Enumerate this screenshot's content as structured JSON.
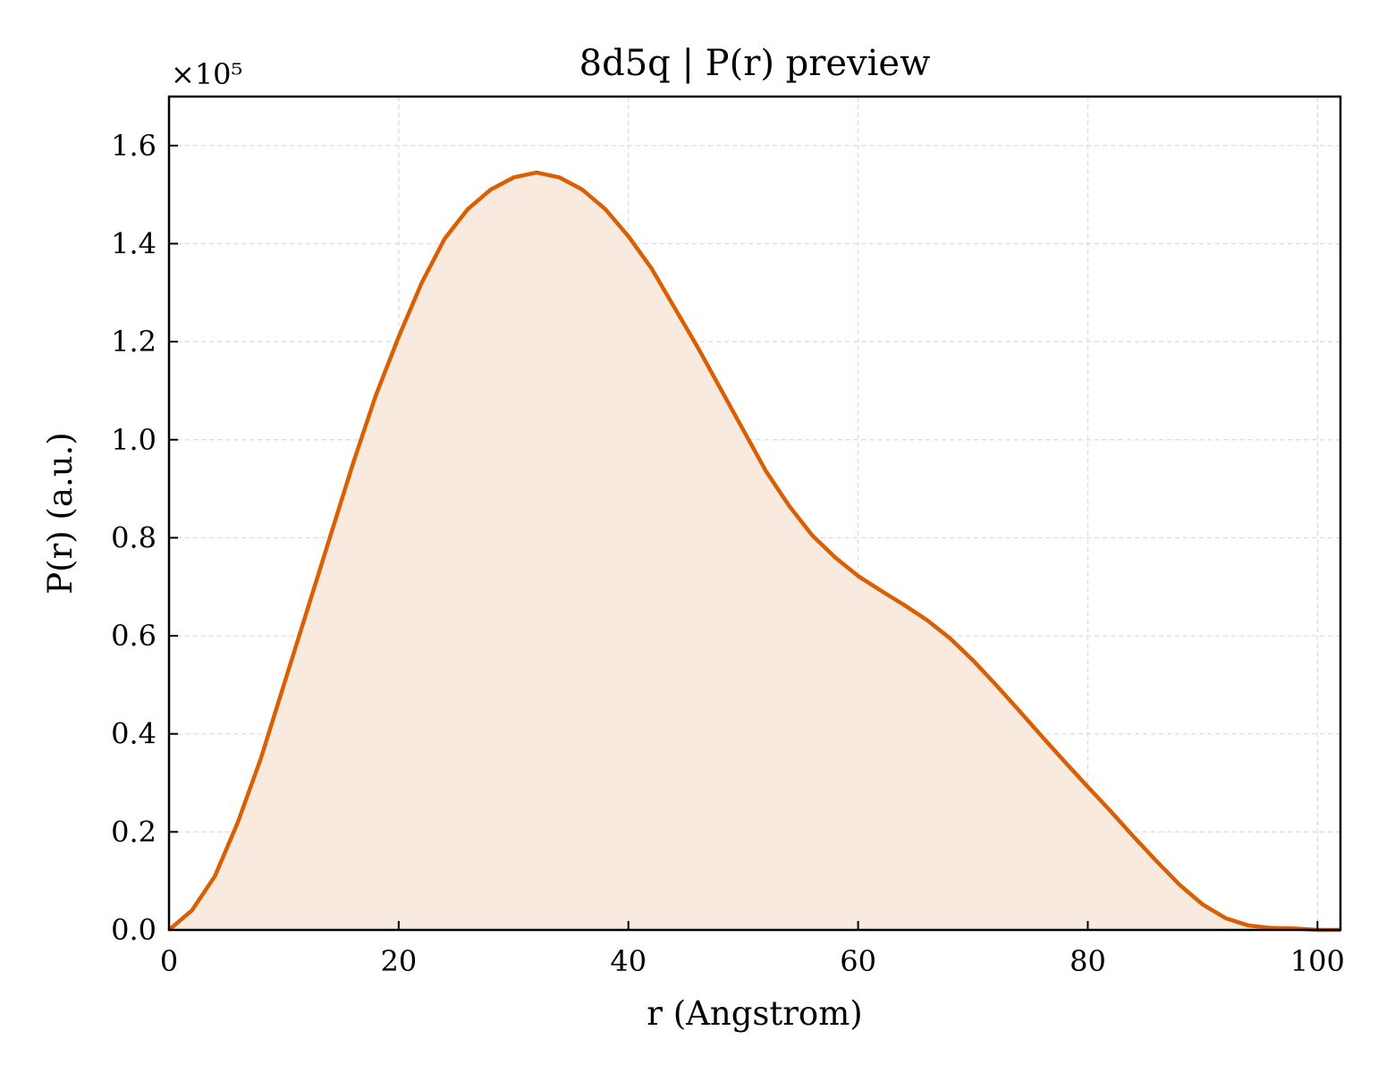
{
  "chart_data": {
    "type": "area",
    "title": "8d5q | P(r) preview",
    "xlabel": "r (Angstrom)",
    "ylabel": "P(r) (a.u.)",
    "y_multiplier_label": "×10⁵",
    "y_multiplier": 100000,
    "xlim": [
      0,
      102
    ],
    "ylim": [
      0,
      1.7
    ],
    "x_ticks": [
      0,
      20,
      40,
      60,
      80,
      100
    ],
    "y_ticks": [
      0.0,
      0.2,
      0.4,
      0.6,
      0.8,
      1.0,
      1.2,
      1.4,
      1.6
    ],
    "x_tick_labels": [
      "0",
      "20",
      "40",
      "60",
      "80",
      "100"
    ],
    "y_tick_labels": [
      "0.0",
      "0.2",
      "0.4",
      "0.6",
      "0.8",
      "1.0",
      "1.2",
      "1.4",
      "1.6"
    ],
    "grid": true,
    "line_color": "#d95f02",
    "fill_color": "#f9eadf",
    "series": [
      {
        "x": [
          0,
          2,
          4,
          6,
          8,
          10,
          12,
          14,
          16,
          18,
          20,
          22,
          24,
          26,
          28,
          30,
          32,
          34,
          36,
          38,
          40,
          42,
          44,
          46,
          48,
          50,
          52,
          54,
          56,
          58,
          60,
          62,
          64,
          66,
          68,
          70,
          72,
          74,
          76,
          78,
          80,
          82,
          84,
          86,
          88,
          90,
          92,
          94,
          96,
          98,
          100,
          102
        ],
        "values": [
          0.0,
          0.04,
          0.11,
          0.22,
          0.35,
          0.5,
          0.65,
          0.8,
          0.95,
          1.09,
          1.21,
          1.32,
          1.41,
          1.47,
          1.51,
          1.535,
          1.545,
          1.535,
          1.51,
          1.47,
          1.415,
          1.35,
          1.27,
          1.19,
          1.105,
          1.02,
          0.935,
          0.865,
          0.805,
          0.76,
          0.722,
          0.692,
          0.663,
          0.632,
          0.595,
          0.55,
          0.5,
          0.448,
          0.395,
          0.343,
          0.292,
          0.242,
          0.19,
          0.14,
          0.092,
          0.052,
          0.024,
          0.009,
          0.004,
          0.003,
          0.0,
          0.0
        ]
      }
    ]
  }
}
